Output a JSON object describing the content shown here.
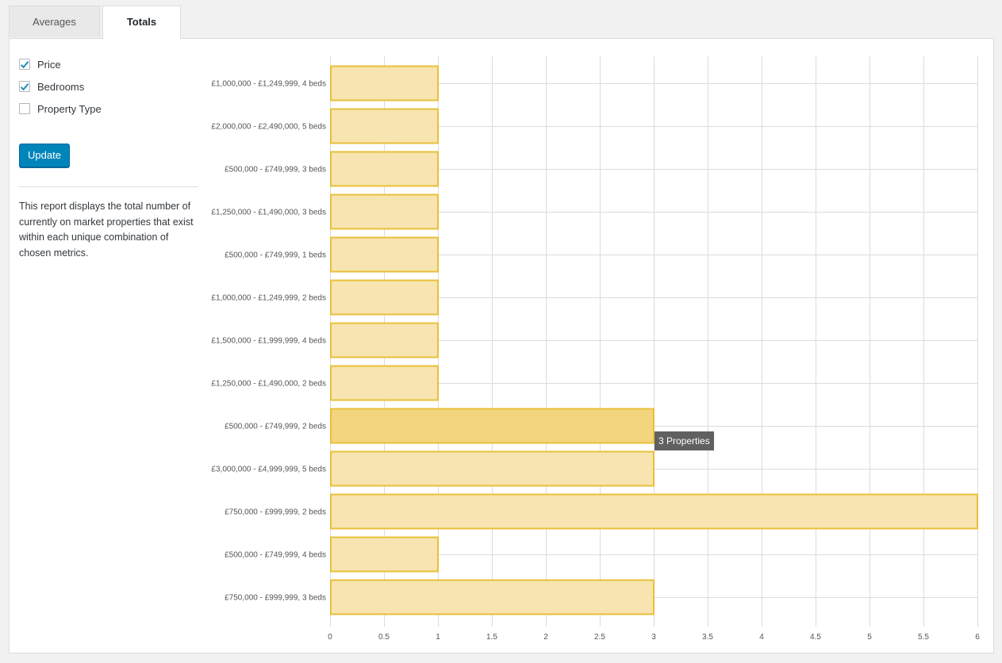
{
  "tabs": [
    {
      "label": "Averages",
      "active": false
    },
    {
      "label": "Totals",
      "active": true
    }
  ],
  "options": [
    {
      "label": "Price",
      "checked": true
    },
    {
      "label": "Bedrooms",
      "checked": true
    },
    {
      "label": "Property Type",
      "checked": false
    }
  ],
  "update_label": "Update",
  "description": "This report displays the total number of currently on market properties that exist within each unique combination of chosen metrics.",
  "tooltip": "3 Properties",
  "colors": {
    "accent": "#0085ba",
    "bar_fill": "#f7e4b0",
    "bar_fill_hover": "#f1d377",
    "bar_stroke": "#eabf3a",
    "grid": "#dcdcdc"
  },
  "chart_data": {
    "type": "bar",
    "orientation": "horizontal",
    "categories": [
      "£1,000,000 - £1,249,999, 4 beds",
      "£2,000,000 - £2,490,000, 5 beds",
      "£500,000 - £749,999, 3 beds",
      "£1,250,000 - £1,490,000, 3 beds",
      "£500,000 - £749,999, 1 beds",
      "£1,000,000 - £1,249,999, 2 beds",
      "£1,500,000 - £1,999,999, 4 beds",
      "£1,250,000 - £1,490,000, 2 beds",
      "£500,000 - £749,999, 2 beds",
      "£3,000,000 - £4,999,999, 5 beds",
      "£750,000 - £999,999, 2 beds",
      "£500,000 - £749,999, 4 beds",
      "£750,000 - £999,999, 3 beds"
    ],
    "values": [
      1,
      1,
      1,
      1,
      1,
      1,
      1,
      1,
      3,
      3,
      6,
      1,
      3
    ],
    "highlighted_index": 8,
    "xlim": [
      0,
      6
    ],
    "xticks": [
      "0",
      "0.5",
      "1",
      "1.5",
      "2",
      "2.5",
      "3",
      "3.5",
      "4",
      "4.5",
      "5",
      "5.5",
      "6"
    ],
    "grid": true,
    "legend": false
  }
}
